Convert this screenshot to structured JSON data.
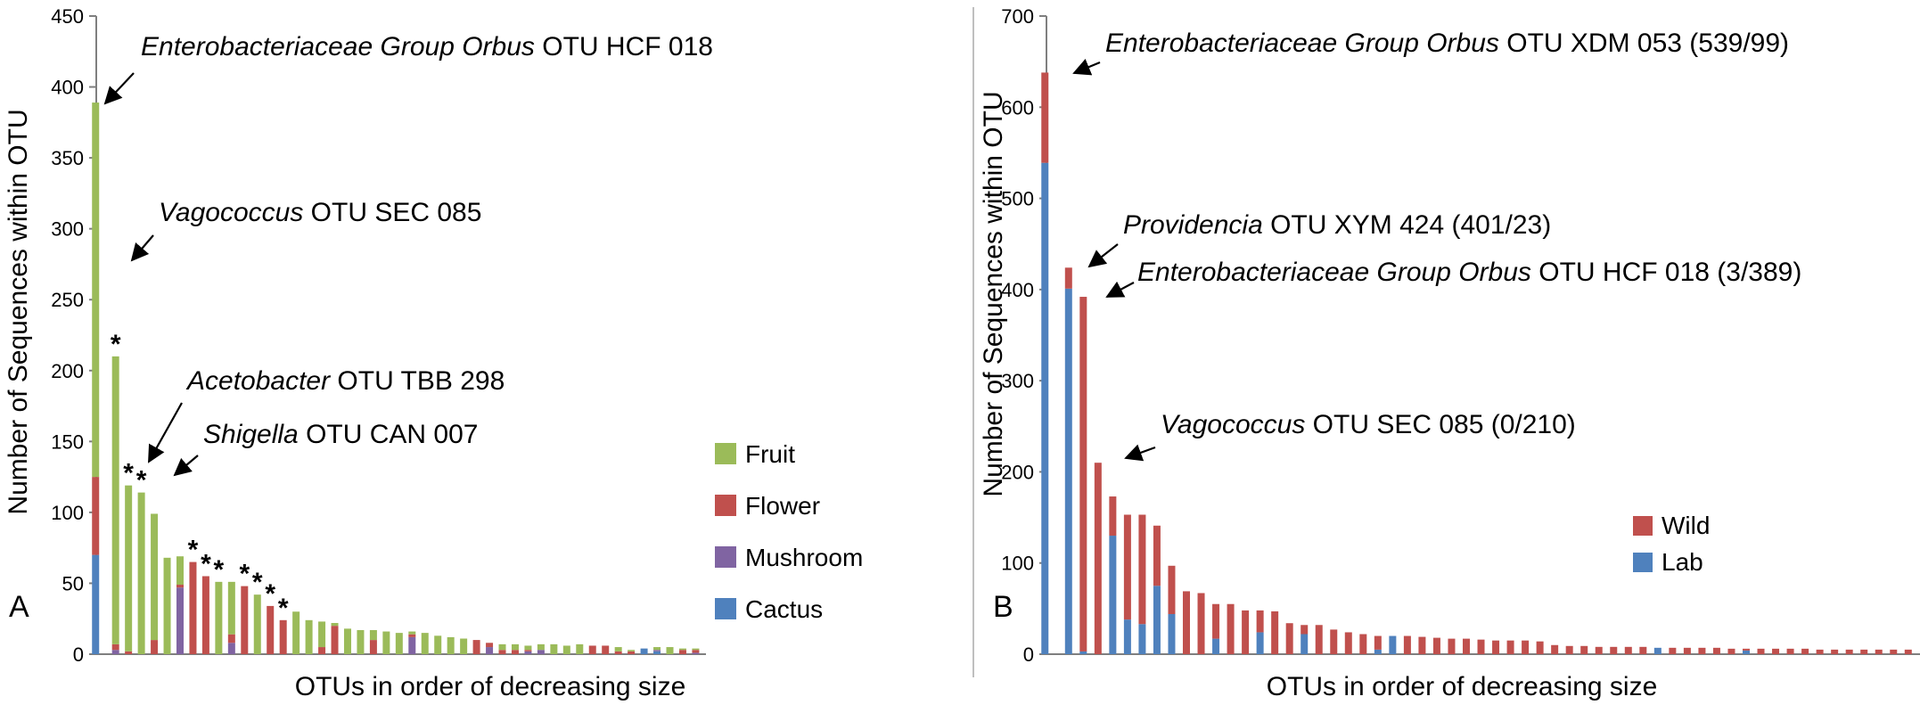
{
  "chart_data": [
    {
      "type": "bar",
      "stacked": true,
      "panel_label": "A",
      "xlabel": "OTUs in order of decreasing size",
      "ylabel": "Number of Sequences within OTU",
      "ylim": [
        0,
        450
      ],
      "yticks": [
        0,
        50,
        100,
        150,
        200,
        250,
        300,
        350,
        400,
        450
      ],
      "grid": false,
      "legend_position": "right",
      "colors": {
        "Fruit": "#9bbb59",
        "Flower": "#c0504d",
        "Mushroom": "#8064a2",
        "Cactus": "#4f81bd"
      },
      "series": [
        {
          "name": "Cactus",
          "values": [
            70,
            0,
            0,
            0,
            0,
            0,
            0,
            0,
            0,
            0,
            0,
            0,
            0,
            0,
            0,
            0,
            0,
            0,
            0,
            0,
            0,
            0,
            0,
            0,
            0,
            0,
            0,
            0,
            0,
            0,
            0,
            0,
            0,
            0,
            0,
            0,
            0,
            0,
            0,
            0,
            0,
            0,
            4,
            2,
            0,
            0,
            0
          ]
        },
        {
          "name": "Mushroom",
          "values": [
            0,
            3,
            0,
            0,
            0,
            0,
            47,
            0,
            0,
            0,
            8,
            0,
            0,
            0,
            0,
            0,
            0,
            0,
            0,
            0,
            0,
            0,
            0,
            0,
            12,
            0,
            0,
            0,
            0,
            0,
            5,
            0,
            0,
            2,
            3,
            0,
            0,
            0,
            0,
            0,
            0,
            0,
            0,
            1,
            0,
            0,
            1
          ]
        },
        {
          "name": "Flower",
          "values": [
            55,
            4,
            2,
            0,
            10,
            0,
            2,
            65,
            55,
            0,
            6,
            48,
            0,
            34,
            24,
            0,
            0,
            5,
            20,
            0,
            0,
            10,
            0,
            0,
            2,
            0,
            0,
            0,
            0,
            10,
            3,
            3,
            3,
            1,
            0,
            0,
            0,
            0,
            6,
            6,
            2,
            2,
            0,
            0,
            0,
            3,
            2
          ]
        },
        {
          "name": "Fruit",
          "values": [
            264,
            203,
            117,
            114,
            89,
            68,
            20,
            0,
            0,
            51,
            37,
            0,
            42,
            0,
            0,
            30,
            24,
            18,
            2,
            18,
            17,
            7,
            16,
            15,
            2,
            15,
            13,
            12,
            11,
            0,
            0,
            4,
            4,
            3,
            4,
            7,
            6,
            7,
            0,
            0,
            3,
            1,
            0,
            2,
            5,
            1,
            1
          ]
        }
      ],
      "annotations": [
        {
          "bar_index": 0,
          "parts": [
            {
              "text": "Enterobacteriaceae Group Orbus",
              "italic": true
            },
            {
              "text": " OTU HCF 018",
              "italic": false
            }
          ]
        },
        {
          "bar_index": 1,
          "parts": [
            {
              "text": "Vagococcus",
              "italic": true
            },
            {
              "text": " OTU SEC 085",
              "italic": false
            }
          ]
        },
        {
          "bar_index": 2,
          "parts": [
            {
              "text": "Acetobacter",
              "italic": true
            },
            {
              "text": " OTU TBB 298",
              "italic": false
            }
          ]
        },
        {
          "bar_index": 3,
          "parts": [
            {
              "text": "Shigella",
              "italic": true
            },
            {
              "text": " OTU CAN 007",
              "italic": false
            }
          ]
        }
      ],
      "asterisk_marker": "*",
      "asterisk_bars": [
        1,
        2,
        3,
        7,
        8,
        9,
        11,
        12,
        13,
        14
      ]
    },
    {
      "type": "bar",
      "stacked": true,
      "panel_label": "B",
      "xlabel": "OTUs in order of decreasing size",
      "ylabel": "Number of Sequences within OTU",
      "ylim": [
        0,
        700
      ],
      "yticks": [
        0,
        100,
        200,
        300,
        400,
        500,
        600,
        700
      ],
      "grid": false,
      "legend_position": "right",
      "colors": {
        "Wild": "#c0504d",
        "Lab": "#4f81bd"
      },
      "series": [
        {
          "name": "Lab",
          "values": [
            539,
            401,
            3,
            0,
            130,
            38,
            33,
            75,
            44,
            0,
            0,
            17,
            0,
            0,
            24,
            0,
            0,
            22,
            0,
            0,
            0,
            0,
            5,
            20,
            0,
            0,
            0,
            0,
            0,
            0,
            0,
            0,
            0,
            0,
            0,
            0,
            0,
            0,
            0,
            0,
            0,
            7,
            0,
            0,
            0,
            0,
            0,
            4,
            0,
            0,
            0,
            0,
            0,
            0,
            0,
            0,
            0,
            0,
            0
          ]
        },
        {
          "name": "Wild",
          "values": [
            99,
            23,
            389,
            210,
            43,
            115,
            120,
            66,
            53,
            69,
            67,
            38,
            55,
            48,
            24,
            47,
            34,
            10,
            32,
            27,
            24,
            22,
            15,
            0,
            20,
            19,
            18,
            17,
            17,
            16,
            15,
            15,
            15,
            14,
            10,
            9,
            9,
            8,
            8,
            8,
            8,
            0,
            7,
            7,
            7,
            7,
            6,
            2,
            6,
            6,
            6,
            6,
            5,
            5,
            5,
            5,
            5,
            5,
            5
          ]
        }
      ],
      "annotations": [
        {
          "bar_index": 0,
          "parts": [
            {
              "text": "Enterobacteriaceae Group Orbus",
              "italic": true
            },
            {
              "text": " OTU XDM 053 (539/99)",
              "italic": false
            }
          ]
        },
        {
          "bar_index": 1,
          "parts": [
            {
              "text": "Providencia",
              "italic": true
            },
            {
              "text": " OTU XYM 424 (401/23)",
              "italic": false
            }
          ]
        },
        {
          "bar_index": 2,
          "parts": [
            {
              "text": "Enterobacteriaceae Group Orbus",
              "italic": true
            },
            {
              "text": " OTU HCF 018  (3/389)",
              "italic": false
            }
          ]
        },
        {
          "bar_index": 3,
          "parts": [
            {
              "text": "Vagococcus",
              "italic": true
            },
            {
              "text": " OTU SEC 085   (0/210)",
              "italic": false
            }
          ]
        }
      ]
    }
  ]
}
